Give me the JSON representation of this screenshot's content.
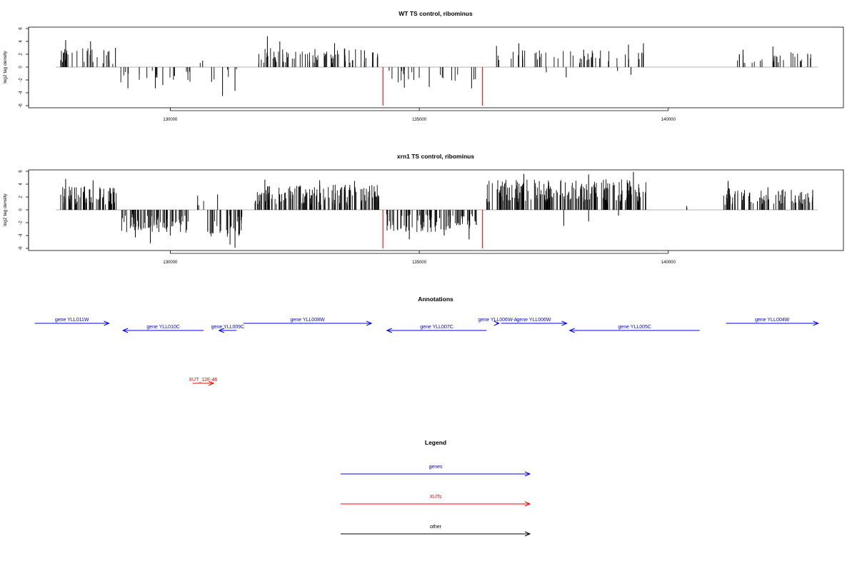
{
  "chart_data": [
    {
      "type": "bar",
      "title": "WT TS control, ribominus",
      "ylabel": "log2 tag density",
      "xlabel": "",
      "xlim": [
        127700,
        143000
      ],
      "ylim": [
        -6,
        6
      ],
      "yticks": [
        6,
        4,
        2,
        0,
        -2,
        -4,
        -6
      ],
      "xticks": [
        130000,
        135000,
        140000
      ],
      "colors": {
        "bars": "#000000",
        "markers": "#ff0000",
        "baseline": "#9a9a9a"
      },
      "markers": [
        {
          "x": 134270,
          "y": -6
        },
        {
          "x": 136270,
          "y": -6
        }
      ],
      "segments": [
        {
          "start": 127800,
          "end": 128950,
          "sign": 1,
          "ymin": 0.5,
          "ymax": 3.0,
          "density": 0.35,
          "spikes": [
            [
              127900,
              4.2
            ],
            [
              128400,
              4.0
            ],
            [
              128750,
              2.4
            ],
            [
              128900,
              3.0
            ]
          ]
        },
        {
          "start": 129000,
          "end": 130400,
          "sign": -1,
          "ymin": 0.5,
          "ymax": 2.6,
          "density": 0.2,
          "spikes": [
            [
              129150,
              -3.3
            ],
            [
              129700,
              -3.3
            ],
            [
              129850,
              -2.8
            ]
          ]
        },
        {
          "start": 130600,
          "end": 130700,
          "sign": 1,
          "ymin": 0.5,
          "ymax": 1.0,
          "density": 0.04,
          "spikes": [
            [
              130650,
              1.0
            ]
          ]
        },
        {
          "start": 130800,
          "end": 131400,
          "sign": -1,
          "ymin": 0.3,
          "ymax": 2.0,
          "density": 0.1,
          "spikes": [
            [
              131050,
              -4.5
            ],
            [
              131300,
              -3.7
            ],
            [
              130830,
              -2.3
            ]
          ]
        },
        {
          "start": 131750,
          "end": 134200,
          "sign": 1,
          "ymin": 0.6,
          "ymax": 3.0,
          "density": 0.45,
          "spikes": [
            [
              131950,
              4.8
            ],
            [
              132200,
              4.0
            ],
            [
              133300,
              3.7
            ],
            [
              133900,
              2.6
            ]
          ]
        },
        {
          "start": 134300,
          "end": 136150,
          "sign": -1,
          "ymin": 0.4,
          "ymax": 2.5,
          "density": 0.15,
          "spikes": [
            [
              134700,
              -3.2
            ],
            [
              135200,
              -3.1
            ],
            [
              136050,
              -3.3
            ]
          ]
        },
        {
          "start": 136350,
          "end": 138900,
          "sign": 1,
          "ymin": 0.6,
          "ymax": 2.6,
          "density": 0.22,
          "spikes": [
            [
              136550,
              3.3
            ],
            [
              137000,
              3.7
            ],
            [
              138300,
              2.7
            ],
            [
              137950,
              -1.6
            ],
            [
              137550,
              -0.8
            ]
          ]
        },
        {
          "start": 138950,
          "end": 139550,
          "sign": 1,
          "ymin": 0.5,
          "ymax": 2.6,
          "density": 0.18,
          "spikes": [
            [
              139200,
              3.5
            ],
            [
              139500,
              3.7
            ],
            [
              139250,
              -1.2
            ],
            [
              138980,
              -0.6
            ]
          ]
        },
        {
          "start": 141150,
          "end": 142900,
          "sign": 1,
          "ymin": 0.6,
          "ymax": 2.4,
          "density": 0.25,
          "spikes": [
            [
              141500,
              2.7
            ],
            [
              142100,
              3.2
            ],
            [
              142800,
              2.0
            ]
          ]
        }
      ]
    },
    {
      "type": "bar",
      "title": "xrn1 TS control, ribominus",
      "ylabel": "log2 tag density",
      "xlabel": "",
      "xlim": [
        127700,
        143000
      ],
      "ylim": [
        -6,
        6
      ],
      "yticks": [
        6,
        4,
        2,
        0,
        -2,
        -4,
        -6
      ],
      "xticks": [
        130000,
        135000,
        140000
      ],
      "colors": {
        "bars": "#000000",
        "markers": "#ff0000",
        "baseline": "#9a9a9a"
      },
      "markers": [
        {
          "x": 134270,
          "y": -6
        },
        {
          "x": 136270,
          "y": -6
        }
      ],
      "segments": [
        {
          "start": 127800,
          "end": 128950,
          "sign": 1,
          "ymin": 0.8,
          "ymax": 3.8,
          "density": 0.8,
          "spikes": [
            [
              127900,
              4.8
            ],
            [
              128450,
              4.6
            ],
            [
              128850,
              3.4
            ]
          ]
        },
        {
          "start": 129000,
          "end": 130400,
          "sign": -1,
          "ymin": 0.6,
          "ymax": 3.6,
          "density": 0.7,
          "spikes": [
            [
              129600,
              -5.2
            ],
            [
              129300,
              -4.3
            ],
            [
              130000,
              -4.0
            ]
          ]
        },
        {
          "start": 130500,
          "end": 130800,
          "sign": 1,
          "ymin": 0.5,
          "ymax": 1.5,
          "density": 0.15,
          "spikes": [
            [
              130550,
              2.2
            ],
            [
              130950,
              2.4
            ]
          ]
        },
        {
          "start": 130750,
          "end": 131450,
          "sign": -1,
          "ymin": 0.8,
          "ymax": 4.2,
          "density": 0.7,
          "spikes": [
            [
              131300,
              -5.9
            ],
            [
              131200,
              -5.4
            ],
            [
              130800,
              -3.7
            ]
          ]
        },
        {
          "start": 131700,
          "end": 134200,
          "sign": 1,
          "ymin": 0.8,
          "ymax": 4.0,
          "density": 0.85,
          "spikes": [
            [
              131900,
              4.7
            ],
            [
              133000,
              4.6
            ],
            [
              133700,
              4.5
            ]
          ]
        },
        {
          "start": 134300,
          "end": 136150,
          "sign": -1,
          "ymin": 0.6,
          "ymax": 3.5,
          "density": 0.7,
          "spikes": [
            [
              134800,
              -4.6
            ],
            [
              135500,
              -4.0
            ],
            [
              136000,
              -4.6
            ]
          ]
        },
        {
          "start": 136350,
          "end": 139550,
          "sign": 1,
          "ymin": 1.0,
          "ymax": 4.8,
          "density": 0.9,
          "spikes": [
            [
              137100,
              5.6
            ],
            [
              138400,
              5.5
            ],
            [
              139300,
              5.9
            ],
            [
              137900,
              -2.5
            ],
            [
              138400,
              -1.8
            ],
            [
              139000,
              -0.9
            ]
          ]
        },
        {
          "start": 140350,
          "end": 140400,
          "sign": 1,
          "ymin": 0.3,
          "ymax": 0.6,
          "density": 0.04,
          "spikes": [
            [
              140370,
              0.6
            ]
          ]
        },
        {
          "start": 141050,
          "end": 142900,
          "sign": 1,
          "ymin": 0.8,
          "ymax": 3.4,
          "density": 0.7,
          "spikes": [
            [
              141200,
              4.5
            ],
            [
              142000,
              3.5
            ],
            [
              142800,
              2.6
            ]
          ]
        }
      ]
    }
  ],
  "annotations": {
    "title": "Annotations",
    "xlim": [
      127700,
      143000
    ],
    "features": [
      {
        "label": "gene YLL011W",
        "start": 127280,
        "end": 128770,
        "strand": "+",
        "row": 0,
        "kind": "gene"
      },
      {
        "label": "gene YLL010C",
        "start": 129050,
        "end": 130670,
        "strand": "-",
        "row": 1,
        "kind": "gene"
      },
      {
        "label": "gene YLL009C",
        "start": 130980,
        "end": 131330,
        "strand": "-",
        "row": 1,
        "kind": "gene"
      },
      {
        "label": "gene YLL008W",
        "start": 131470,
        "end": 134040,
        "strand": "+",
        "row": 0,
        "kind": "gene"
      },
      {
        "label": "gene YLL007C",
        "start": 134350,
        "end": 136350,
        "strand": "-",
        "row": 1,
        "kind": "gene"
      },
      {
        "label": "gene YLL006W-A",
        "start": 136550,
        "end": 136600,
        "strand": "+",
        "row": 0,
        "kind": "gene"
      },
      {
        "label": "gene YLL006W",
        "start": 136640,
        "end": 137960,
        "strand": "+",
        "row": 0,
        "kind": "gene"
      },
      {
        "label": "gene YLL005C",
        "start": 138020,
        "end": 140630,
        "strand": "-",
        "row": 1,
        "kind": "gene"
      },
      {
        "label": "gene YLL004W",
        "start": 141160,
        "end": 143010,
        "strand": "+",
        "row": 0,
        "kind": "gene"
      },
      {
        "label": "XUT_12F-46",
        "start": 130450,
        "end": 130870,
        "strand": "+",
        "row": 2,
        "kind": "xut"
      }
    ]
  },
  "legend": {
    "title": "Legend",
    "items": [
      {
        "label": "genes",
        "color": "#0000ff"
      },
      {
        "label": "XUTs",
        "color": "#ff0000"
      },
      {
        "label": "other",
        "color": "#000000"
      }
    ]
  }
}
